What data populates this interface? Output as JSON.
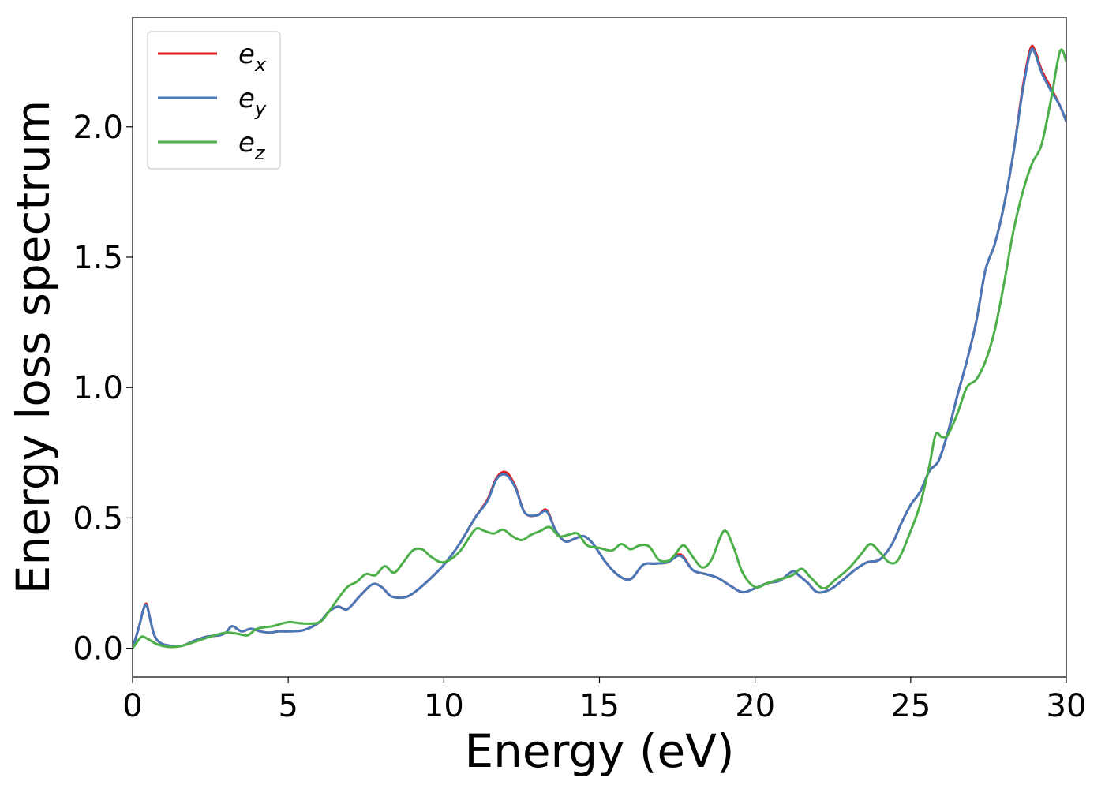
{
  "chart_data": {
    "type": "line",
    "xlabel": "Energy (eV)",
    "ylabel": "Energy loss spectrum",
    "xlim": [
      0,
      30
    ],
    "ylim": [
      -0.11,
      2.42
    ],
    "xticks": [
      0,
      5,
      10,
      15,
      20,
      25,
      30
    ],
    "xtick_labels": [
      "0",
      "5",
      "10",
      "15",
      "20",
      "25",
      "30"
    ],
    "yticks": [
      0.0,
      0.5,
      1.0,
      1.5,
      2.0
    ],
    "ytick_labels": [
      "0.0",
      "0.5",
      "1.0",
      "1.5",
      "2.0"
    ],
    "grid": false,
    "legend_position": "top-left",
    "series": [
      {
        "name": "e_x",
        "label_main": "e",
        "label_sub": "x",
        "color": "#e41a1c",
        "x": [
          0,
          0.2,
          0.35,
          0.45,
          0.55,
          0.7,
          0.9,
          1.2,
          1.6,
          2.0,
          2.4,
          2.8,
          3.0,
          3.2,
          3.5,
          3.8,
          4.1,
          4.4,
          4.7,
          5.0,
          5.5,
          6.0,
          6.3,
          6.6,
          6.9,
          7.3,
          7.7,
          8.0,
          8.3,
          8.7,
          9.0,
          9.5,
          10.0,
          10.5,
          11.0,
          11.4,
          11.7,
          12.0,
          12.3,
          12.6,
          13.0,
          13.3,
          13.6,
          13.9,
          14.2,
          14.5,
          14.8,
          15.2,
          15.6,
          16.0,
          16.4,
          16.8,
          17.2,
          17.6,
          18.0,
          18.4,
          18.8,
          19.2,
          19.6,
          20.0,
          20.4,
          20.8,
          21.2,
          21.4,
          21.7,
          22.0,
          22.4,
          22.8,
          23.2,
          23.6,
          24.0,
          24.4,
          24.7,
          25.0,
          25.3,
          25.6,
          25.9,
          26.2,
          26.5,
          26.8,
          27.1,
          27.4,
          27.7,
          28.0,
          28.3,
          28.6,
          28.85,
          29.0,
          29.2,
          29.5,
          29.8,
          30.0
        ],
        "values": [
          0.0,
          0.08,
          0.15,
          0.17,
          0.12,
          0.05,
          0.02,
          0.01,
          0.01,
          0.03,
          0.045,
          0.05,
          0.06,
          0.085,
          0.065,
          0.075,
          0.065,
          0.06,
          0.065,
          0.065,
          0.07,
          0.1,
          0.14,
          0.16,
          0.15,
          0.2,
          0.245,
          0.235,
          0.2,
          0.195,
          0.21,
          0.26,
          0.32,
          0.4,
          0.5,
          0.57,
          0.655,
          0.675,
          0.62,
          0.52,
          0.51,
          0.53,
          0.45,
          0.41,
          0.42,
          0.43,
          0.4,
          0.33,
          0.28,
          0.265,
          0.32,
          0.325,
          0.33,
          0.36,
          0.3,
          0.285,
          0.27,
          0.24,
          0.215,
          0.23,
          0.25,
          0.26,
          0.295,
          0.28,
          0.25,
          0.215,
          0.225,
          0.26,
          0.3,
          0.33,
          0.34,
          0.4,
          0.48,
          0.55,
          0.6,
          0.68,
          0.72,
          0.83,
          0.97,
          1.1,
          1.25,
          1.45,
          1.55,
          1.7,
          1.9,
          2.15,
          2.3,
          2.29,
          2.22,
          2.15,
          2.08,
          2.02
        ]
      },
      {
        "name": "e_y",
        "label_main": "e",
        "label_sub": "y",
        "color": "#4878b8",
        "x": [
          0,
          0.2,
          0.35,
          0.45,
          0.55,
          0.7,
          0.9,
          1.2,
          1.6,
          2.0,
          2.4,
          2.8,
          3.0,
          3.2,
          3.5,
          3.8,
          4.1,
          4.4,
          4.7,
          5.0,
          5.5,
          6.0,
          6.3,
          6.6,
          6.9,
          7.3,
          7.7,
          8.0,
          8.3,
          8.7,
          9.0,
          9.5,
          10.0,
          10.5,
          11.0,
          11.4,
          11.7,
          12.0,
          12.3,
          12.6,
          13.0,
          13.3,
          13.6,
          13.9,
          14.2,
          14.5,
          14.8,
          15.2,
          15.6,
          16.0,
          16.4,
          16.8,
          17.2,
          17.6,
          18.0,
          18.4,
          18.8,
          19.2,
          19.6,
          20.0,
          20.4,
          20.8,
          21.2,
          21.4,
          21.7,
          22.0,
          22.4,
          22.8,
          23.2,
          23.6,
          24.0,
          24.4,
          24.7,
          25.0,
          25.3,
          25.6,
          25.9,
          26.2,
          26.5,
          26.8,
          27.1,
          27.4,
          27.7,
          28.0,
          28.3,
          28.6,
          28.85,
          29.0,
          29.2,
          29.5,
          29.8,
          30.0
        ],
        "values": [
          0.0,
          0.08,
          0.15,
          0.165,
          0.12,
          0.05,
          0.02,
          0.01,
          0.01,
          0.03,
          0.045,
          0.05,
          0.06,
          0.085,
          0.065,
          0.075,
          0.065,
          0.06,
          0.065,
          0.065,
          0.07,
          0.1,
          0.14,
          0.16,
          0.15,
          0.2,
          0.245,
          0.235,
          0.2,
          0.195,
          0.21,
          0.26,
          0.32,
          0.4,
          0.5,
          0.565,
          0.65,
          0.665,
          0.615,
          0.52,
          0.51,
          0.525,
          0.45,
          0.41,
          0.42,
          0.43,
          0.4,
          0.33,
          0.28,
          0.265,
          0.32,
          0.325,
          0.33,
          0.355,
          0.3,
          0.285,
          0.27,
          0.24,
          0.215,
          0.23,
          0.25,
          0.26,
          0.295,
          0.28,
          0.25,
          0.215,
          0.225,
          0.26,
          0.3,
          0.33,
          0.34,
          0.4,
          0.48,
          0.55,
          0.6,
          0.68,
          0.72,
          0.83,
          0.97,
          1.1,
          1.25,
          1.45,
          1.55,
          1.7,
          1.9,
          2.14,
          2.29,
          2.28,
          2.21,
          2.14,
          2.08,
          2.02
        ]
      },
      {
        "name": "e_z",
        "label_main": "e",
        "label_sub": "z",
        "color": "#4daf4a",
        "x": [
          0,
          0.15,
          0.3,
          0.5,
          0.8,
          1.2,
          1.6,
          2.0,
          2.5,
          3.0,
          3.4,
          3.7,
          4.0,
          4.5,
          5.0,
          5.5,
          6.0,
          6.3,
          6.6,
          6.9,
          7.2,
          7.5,
          7.8,
          8.1,
          8.4,
          8.7,
          9.0,
          9.3,
          9.6,
          10.0,
          10.5,
          11.0,
          11.3,
          11.6,
          11.9,
          12.2,
          12.5,
          12.8,
          13.1,
          13.4,
          13.7,
          14.0,
          14.3,
          14.6,
          15.0,
          15.4,
          15.7,
          16.0,
          16.3,
          16.6,
          16.9,
          17.2,
          17.4,
          17.7,
          18.0,
          18.3,
          18.6,
          19.0,
          19.3,
          19.6,
          20.0,
          20.4,
          20.8,
          21.2,
          21.5,
          21.8,
          22.2,
          22.6,
          23.0,
          23.4,
          23.7,
          24.0,
          24.3,
          24.6,
          25.0,
          25.3,
          25.6,
          25.8,
          26.0,
          26.2,
          26.5,
          26.8,
          27.1,
          27.4,
          27.7,
          28.0,
          28.3,
          28.6,
          28.9,
          29.2,
          29.5,
          29.8,
          30.0
        ],
        "values": [
          0.0,
          0.025,
          0.045,
          0.035,
          0.015,
          0.005,
          0.01,
          0.025,
          0.045,
          0.06,
          0.055,
          0.05,
          0.075,
          0.085,
          0.1,
          0.095,
          0.1,
          0.14,
          0.19,
          0.235,
          0.255,
          0.285,
          0.28,
          0.315,
          0.29,
          0.33,
          0.375,
          0.38,
          0.35,
          0.33,
          0.37,
          0.455,
          0.45,
          0.44,
          0.455,
          0.43,
          0.415,
          0.435,
          0.45,
          0.465,
          0.43,
          0.435,
          0.44,
          0.395,
          0.385,
          0.375,
          0.4,
          0.38,
          0.395,
          0.39,
          0.34,
          0.335,
          0.355,
          0.395,
          0.35,
          0.31,
          0.34,
          0.45,
          0.39,
          0.29,
          0.235,
          0.25,
          0.265,
          0.28,
          0.305,
          0.27,
          0.23,
          0.265,
          0.305,
          0.36,
          0.4,
          0.37,
          0.33,
          0.34,
          0.45,
          0.55,
          0.7,
          0.82,
          0.81,
          0.82,
          0.9,
          1.0,
          1.03,
          1.1,
          1.22,
          1.4,
          1.6,
          1.75,
          1.86,
          1.93,
          2.1,
          2.29,
          2.25
        ]
      }
    ]
  }
}
